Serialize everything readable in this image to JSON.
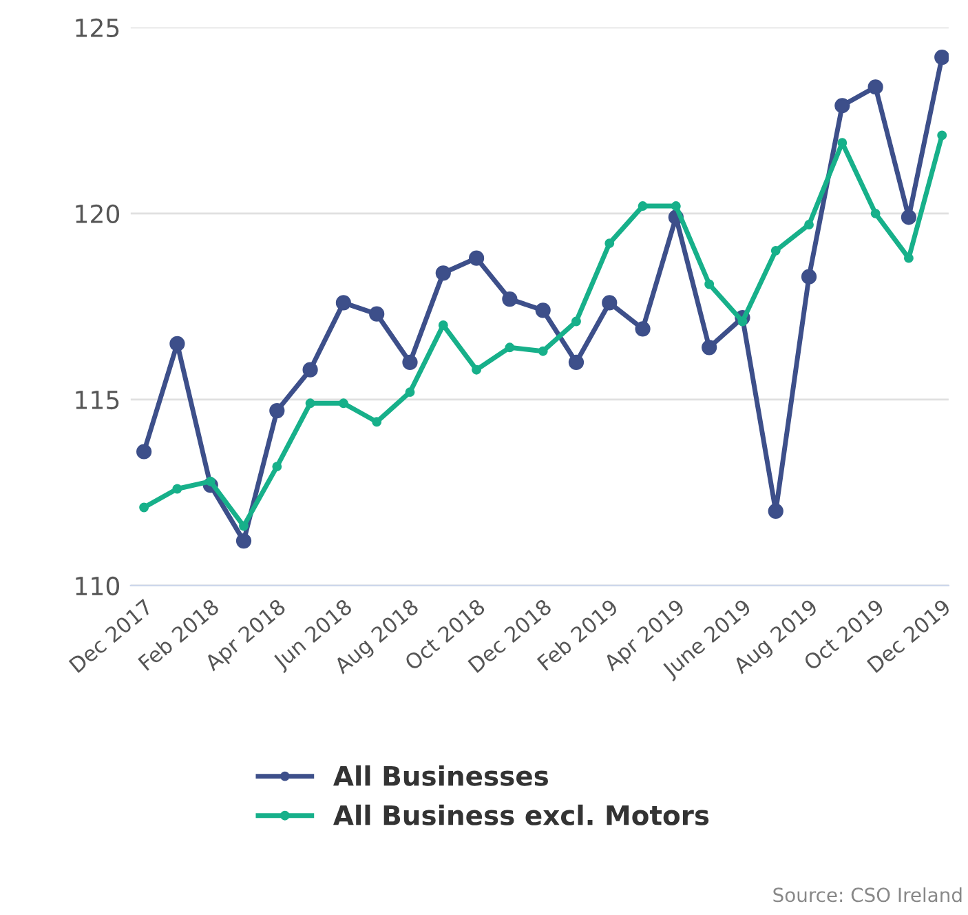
{
  "chart_data": {
    "type": "line",
    "categories": [
      "Dec 2017",
      null,
      "Feb 2018",
      null,
      "Apr 2018",
      null,
      "Jun 2018",
      null,
      "Aug 2018",
      null,
      "Oct 2018",
      null,
      "Dec 2018",
      null,
      "Feb 2019",
      null,
      "Apr 2019",
      null,
      "June 2019",
      null,
      "Aug 2019",
      null,
      "Oct 2019",
      null,
      "Dec 2019"
    ],
    "series": [
      {
        "name": "All Businesses",
        "color": "#3d4f8a",
        "values": [
          113.6,
          116.5,
          112.7,
          111.2,
          114.7,
          115.8,
          117.6,
          117.3,
          116.0,
          118.4,
          118.8,
          117.7,
          117.4,
          116.0,
          117.6,
          116.9,
          119.9,
          116.4,
          117.2,
          112.0,
          118.3,
          122.9,
          123.4,
          119.9,
          124.2
        ]
      },
      {
        "name": "All Business excl. Motors",
        "color": "#17b08a",
        "values": [
          112.1,
          112.6,
          112.8,
          111.6,
          113.2,
          114.9,
          114.9,
          114.4,
          115.2,
          117.0,
          115.8,
          116.4,
          116.3,
          117.1,
          119.2,
          120.2,
          120.2,
          118.1,
          117.1,
          119.0,
          119.7,
          121.9,
          120.0,
          118.8,
          122.1
        ]
      }
    ],
    "ylim": [
      110,
      125
    ],
    "yticks": [
      110,
      115,
      120,
      125
    ],
    "grid": "y",
    "legend": "bottom",
    "marker": "circle",
    "line_style": "solid",
    "annotations": [
      "Source: CSO Ireland"
    ]
  }
}
